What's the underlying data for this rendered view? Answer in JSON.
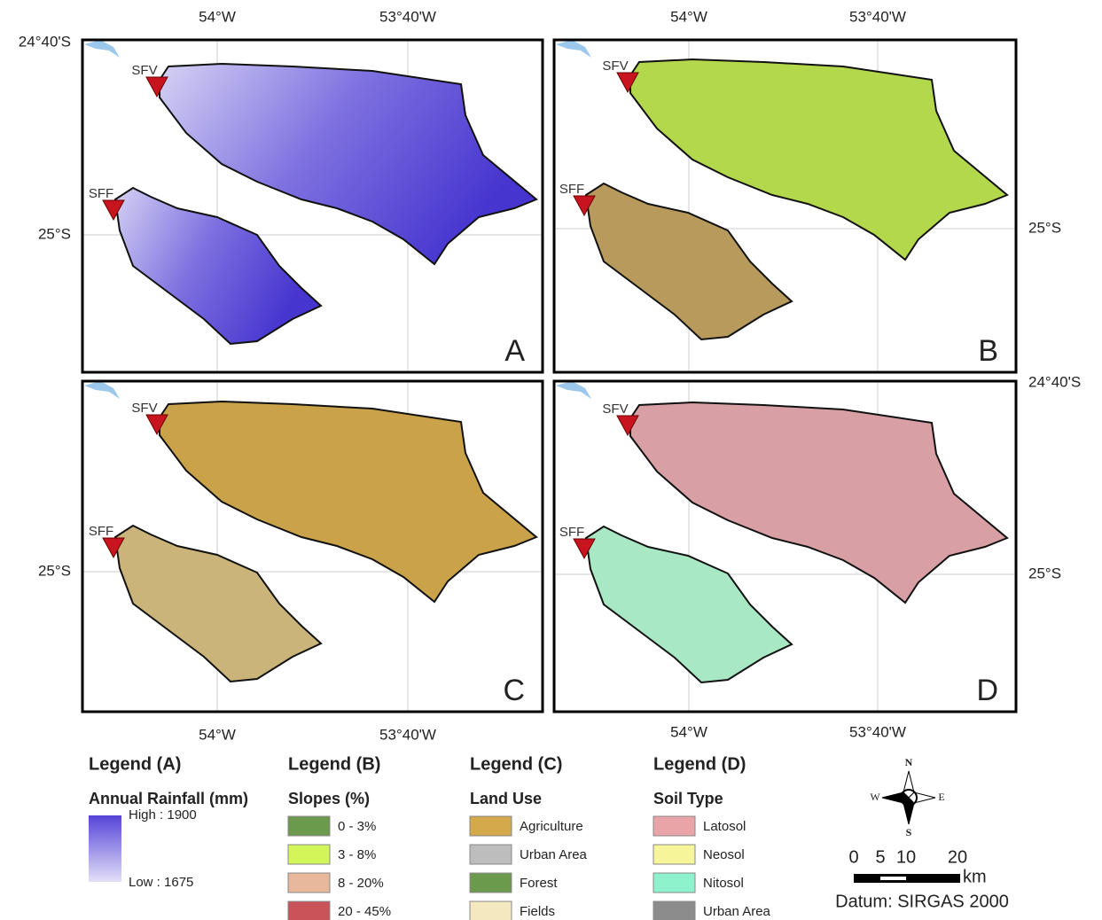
{
  "panels": [
    "A",
    "B",
    "C",
    "D"
  ],
  "stations": [
    "SFV",
    "SFF"
  ],
  "longitudes": [
    "54°W",
    "53°40'W"
  ],
  "latitudes": [
    "24°40'S",
    "25°S"
  ],
  "legends": [
    {
      "heading": "Legend (A)",
      "title": "Annual Rainfall (mm)",
      "high": "High : 1900",
      "low": "Low : 1675"
    },
    {
      "heading": "Legend (B)",
      "title": "Slopes (%)",
      "items": [
        {
          "label": "0 - 3%",
          "color": "#6b9a4c"
        },
        {
          "label": "3 - 8%",
          "color": "#d2f55a"
        },
        {
          "label": "8 - 20%",
          "color": "#e8b89c"
        },
        {
          "label": "20 - 45%",
          "color": "#c8545a"
        }
      ]
    },
    {
      "heading": "Legend (C)",
      "title": "Land Use",
      "items": [
        {
          "label": "Agriculture",
          "color": "#d4a94c"
        },
        {
          "label": "Urban Area",
          "color": "#bdbdbd"
        },
        {
          "label": "Forest",
          "color": "#6b9a4c"
        },
        {
          "label": "Fields",
          "color": "#f4e8c0"
        }
      ]
    },
    {
      "heading": "Legend (D)",
      "title": "Soil Type",
      "items": [
        {
          "label": "Latosol",
          "color": "#e8a4a6"
        },
        {
          "label": "Neosol",
          "color": "#f6f59a"
        },
        {
          "label": "Nitosol",
          "color": "#8ef2cc"
        },
        {
          "label": "Urban Area",
          "color": "#8c8c8c"
        }
      ]
    }
  ],
  "compass": {
    "n": "N",
    "s": "S",
    "w": "W",
    "e": "E"
  },
  "scale": {
    "labels": [
      "0",
      "5",
      "10",
      "20"
    ],
    "unit": "km"
  },
  "datum": "Datum: SIRGAS 2000"
}
